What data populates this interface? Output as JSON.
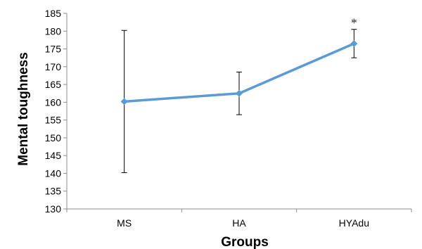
{
  "chart_data": {
    "type": "line",
    "xlabel": "Groups",
    "ylabel": "Mental toughness",
    "ylim": [
      130,
      185
    ],
    "ytick_step": 5,
    "categories": [
      "MS",
      "HA",
      "HYAdu"
    ],
    "series": [
      {
        "values": [
          160.2,
          162.5,
          176.5
        ],
        "error_low": [
          140.2,
          156.5,
          172.5
        ],
        "error_high": [
          180.2,
          168.5,
          180.5
        ],
        "color": "#5b9bd5"
      }
    ],
    "annotations": [
      {
        "category": "HYAdu",
        "text": "*"
      }
    ],
    "grid": false,
    "legend": "none"
  }
}
